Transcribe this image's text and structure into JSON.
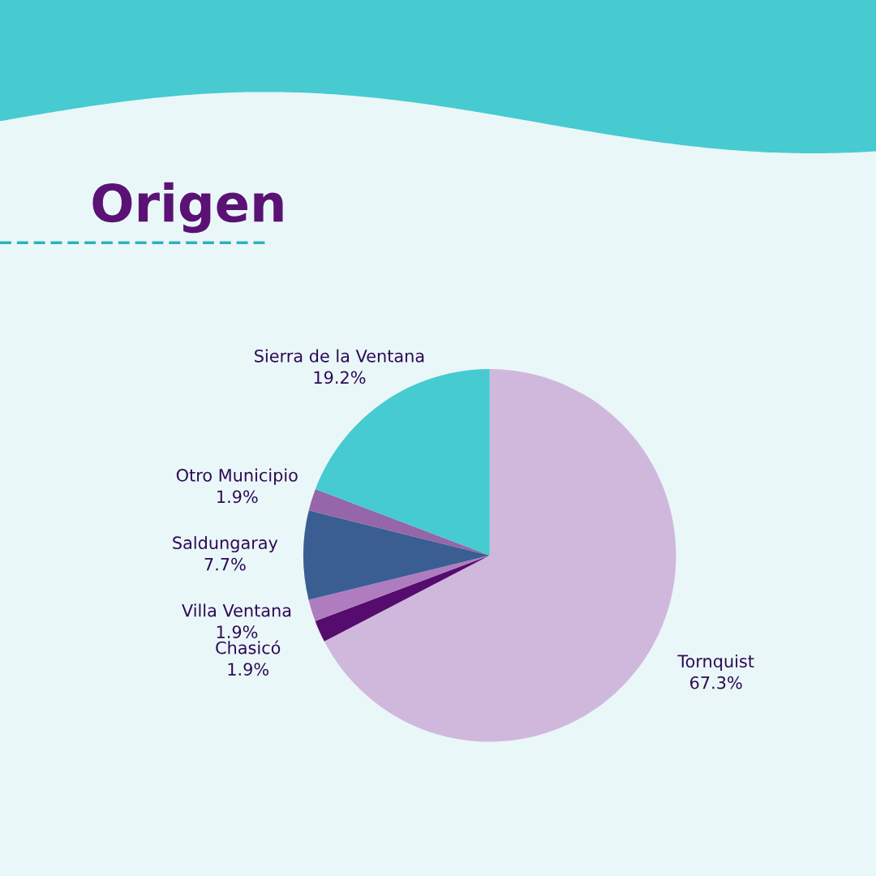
{
  "chart_data": {
    "type": "pie",
    "title": "Origen",
    "categories": [
      "Tornquist",
      "Chasicó",
      "Villa Ventana",
      "Saldungaray",
      "Otro Municipio",
      "Sierra de la Ventana"
    ],
    "values": [
      67.3,
      1.9,
      1.9,
      7.7,
      1.9,
      19.2
    ],
    "value_labels": [
      "67.3%",
      "1.9%",
      "1.9%",
      "7.7%",
      "1.9%",
      "19.2%"
    ],
    "colors": [
      "#d0b8dc",
      "#560c6e",
      "#b07cc0",
      "#3a5e92",
      "#9566a8",
      "#45cbd0"
    ],
    "legend": false
  }
}
